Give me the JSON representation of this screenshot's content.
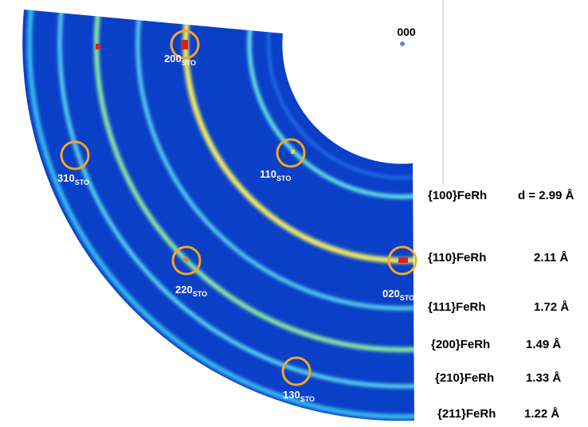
{
  "origin_label": "000",
  "spots": [
    {
      "index": "200",
      "subscript": "STO"
    },
    {
      "index": "310",
      "subscript": "STO"
    },
    {
      "index": "110",
      "subscript": "STO"
    },
    {
      "index": "220",
      "subscript": "STO"
    },
    {
      "index": "020",
      "subscript": "STO"
    },
    {
      "index": "130",
      "subscript": "STO"
    }
  ],
  "rings": [
    {
      "label": "{100}FeRh",
      "d": "d = 2.99 Å"
    },
    {
      "label": "{110}FeRh",
      "d": "2.11 Å"
    },
    {
      "label": "{111}FeRh",
      "d": "1.72 Å"
    },
    {
      "label": "{200}FeRh",
      "d": "1.49 Å"
    },
    {
      "label": "{210}FeRh",
      "d": "1.33 Å"
    },
    {
      "label": "{211}FeRh",
      "d": "1.22 Å"
    }
  ]
}
